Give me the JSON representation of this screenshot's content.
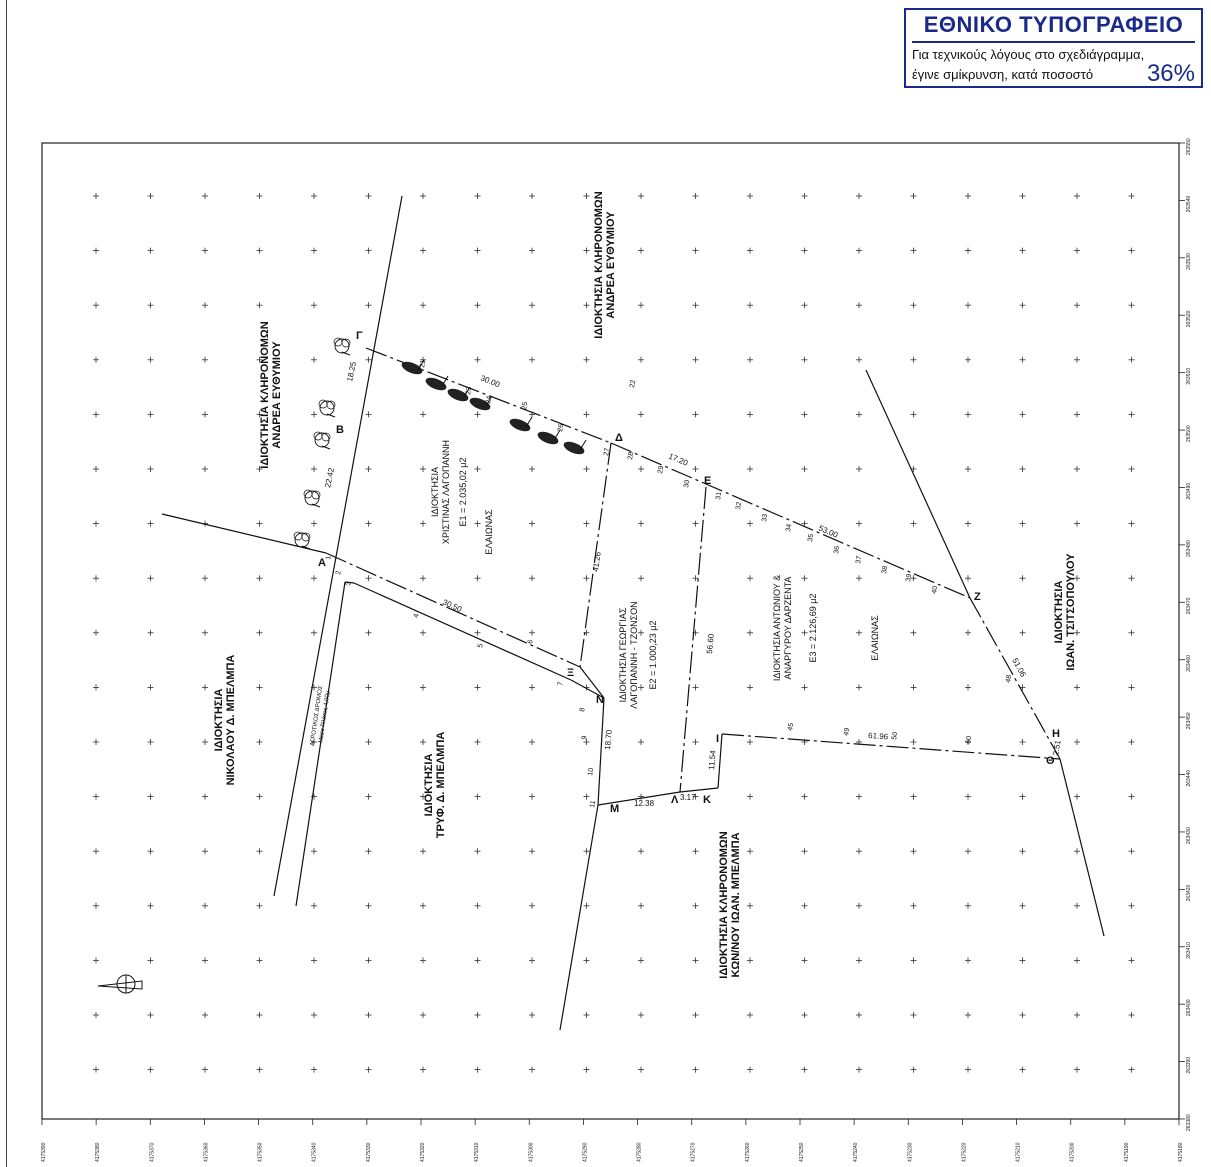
{
  "stamp": {
    "title": "ΕΘΝΙΚΟ ΤΥΠΟΓΡΑΦΕΙΟ",
    "line1": "Για τεχνικούς λόγους στο σχεδιάγραμμα,",
    "line2": "έγινε σμίκρυνση, κατά ποσοστό",
    "percent": "36%"
  },
  "owners": {
    "andrea_heirs_left": [
      "ΙΔΙΟΚΤΗΣΙΑ ΚΛΗΡΟΝΟΜΩΝ",
      "ΑΝΔΡΕΑ ΕΥΘΥΜΙΟΥ"
    ],
    "andrea_heirs_right": [
      "ΙΔΙΟΚΤΗΣΙΑ ΚΛΗΡΟΝΟΜΩΝ",
      "ΑΝΔΡΕΑ ΕΥΘΥΜΙΟΥ"
    ],
    "nikolaou": [
      "ΙΔΙΟΚΤΗΣΙΑ",
      "ΝΙΚΟΛΑΟΥ Δ. ΜΠΕΛΜΠΑ"
    ],
    "tryf": [
      "ΙΔΙΟΚΤΗΣΙΑ",
      "ΤΡΥΦ. Δ. ΜΠΕΛΜΠΑ"
    ],
    "kon_ioan": [
      "ΙΔΙΟΚΤΗΣΙΑ ΚΛΗΡΟΝΟΜΩΝ",
      "ΚΩΝ/ΝΟΥ ΙΩΑΝ. ΜΠΕΛΜΠΑ"
    ],
    "tsitsopoulou": [
      "ΙΔΙΟΚΤΗΣΙΑ",
      "ΙΩΑΝ. ΤΣΙΤΣΟΠΟΥΛΟΥ"
    ]
  },
  "parcels": {
    "e1": [
      "ΙΔΙΟΚΤΗΣΙΑ",
      "ΧΡΙΣΤΙΝΑΣ ΛΑΓΟΠΑΝΝΗ",
      "E1 = 2.035,02 μ2",
      "ΕΛΑΙΩΝΑΣ"
    ],
    "e2": [
      "ΙΔΙΟΚΤΗΣΙΑ ΓΕΩΡΓΙΑΣ",
      "ΛΑΓΟΠΑΝΝΗ - ΤΖΟΝΣΟΝ",
      "E2 = 1.000,23 μ2"
    ],
    "e3": [
      "ΙΔΙΟΚΤΗΣΙΑ ΑΝΤΩΝΙΟΥ &",
      "ΑΝΑΡΓΥΡΟΥ ΔΑΡΖΕΝΤΑ",
      "E3 = 2.126,69 μ2",
      "ΕΛΑΙΩΝΑΣ"
    ]
  },
  "road": [
    "ΑΓΡΟΤΙΚΟΣ ΔΡΟΜΟΣ",
    "Μέσο Πλάτος 4,00μ"
  ],
  "vertex_labels": [
    "Α",
    "Β",
    "Γ",
    "Δ",
    "Ε",
    "Ζ",
    "Η",
    "Θ",
    "Ι",
    "Κ",
    "Λ",
    "Μ",
    "Ν",
    "Ξ"
  ],
  "dimensions": [
    "22.42",
    "18.25",
    "30.00",
    "17.20",
    "53.00",
    "41.26",
    "56.60",
    "61.96",
    "51.06",
    "30.50",
    "12.38",
    "3.17",
    "11.54",
    "18.70",
    "2.51"
  ],
  "point_numbers": [
    "1",
    "2",
    "3",
    "4",
    "5",
    "6",
    "7",
    "8",
    "9",
    "10",
    "11",
    "21",
    "22",
    "23",
    "24",
    "25",
    "26",
    "27",
    "28",
    "29",
    "30",
    "31",
    "32",
    "33",
    "34",
    "35",
    "36",
    "37",
    "38",
    "39",
    "40",
    "45",
    "48",
    "49",
    "50",
    "60"
  ],
  "axis_bottom": [
    "4175390",
    "4175380",
    "4175370",
    "4175360",
    "4175350",
    "4175340",
    "4175330",
    "4175320",
    "4175310",
    "4175300",
    "4175290",
    "4175280",
    "4175270",
    "4175260",
    "4175250",
    "4175240",
    "4175230",
    "4175220",
    "4175210",
    "4175200",
    "4175190",
    "4175180"
  ],
  "axis_right": [
    "263550",
    "263540",
    "263530",
    "263520",
    "263510",
    "263500",
    "263490",
    "263480",
    "263470",
    "263460",
    "263450",
    "263440",
    "263430",
    "263420",
    "263410",
    "263400",
    "263390",
    "263380"
  ]
}
